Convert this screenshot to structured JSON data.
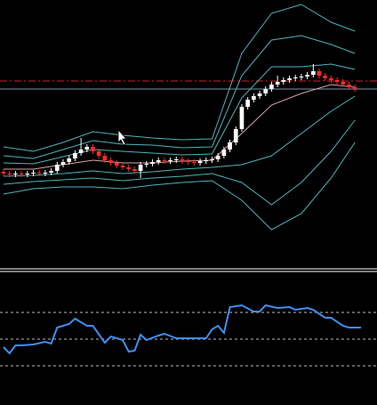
{
  "chart_data": [
    {
      "type": "candlestick",
      "xlim": [
        -0.6,
        62.7
      ],
      "ylim": [
        0,
        300
      ],
      "open": [
        107,
        105,
        104,
        105,
        104,
        105,
        106,
        105,
        106,
        108,
        115,
        118,
        122,
        128,
        132,
        135,
        130,
        125,
        120,
        117,
        114,
        112,
        110,
        108,
        115,
        116,
        118,
        120,
        119,
        120,
        121,
        119,
        118,
        117,
        119,
        120,
        121,
        125,
        132,
        140,
        155,
        180,
        188,
        192,
        195,
        200,
        205,
        208,
        210,
        212,
        213,
        214,
        216,
        220,
        215,
        212,
        210,
        208,
        205,
        202
      ],
      "high": [
        110,
        108,
        108,
        108,
        108,
        109,
        109,
        109,
        111,
        118,
        121,
        125,
        131,
        145,
        138,
        138,
        133,
        128,
        123,
        120,
        117,
        115,
        113,
        118,
        119,
        121,
        123,
        123,
        123,
        124,
        124,
        122,
        121,
        122,
        123,
        124,
        128,
        135,
        143,
        158,
        183,
        191,
        195,
        198,
        203,
        208,
        215,
        213,
        215,
        216,
        217,
        219,
        228,
        223,
        218,
        215,
        213,
        211,
        208,
        205
      ],
      "low": [
        102,
        101,
        101,
        101,
        101,
        102,
        102,
        102,
        103,
        105,
        112,
        115,
        119,
        125,
        129,
        127,
        122,
        117,
        114,
        111,
        109,
        107,
        105,
        100,
        112,
        113,
        115,
        116,
        116,
        117,
        116,
        115,
        114,
        114,
        116,
        117,
        118,
        122,
        129,
        137,
        152,
        177,
        185,
        189,
        192,
        197,
        202,
        205,
        207,
        209,
        210,
        211,
        213,
        212,
        209,
        207,
        205,
        203,
        200,
        197
      ],
      "close": [
        105,
        104,
        105,
        104,
        105,
        106,
        105,
        106,
        108,
        115,
        118,
        122,
        128,
        132,
        135,
        130,
        125,
        120,
        117,
        114,
        112,
        110,
        108,
        115,
        116,
        118,
        120,
        119,
        120,
        121,
        119,
        118,
        117,
        119,
        120,
        121,
        125,
        132,
        140,
        155,
        180,
        188,
        192,
        195,
        200,
        205,
        208,
        210,
        212,
        213,
        214,
        216,
        220,
        215,
        212,
        210,
        208,
        205,
        202,
        200
      ],
      "up_color": "#ffffff",
      "down_color": "#ff2a2a",
      "bands": {
        "x": [
          0,
          5,
          10,
          15,
          20,
          25,
          30,
          35,
          40,
          45,
          50,
          55,
          59
        ],
        "series": [
          {
            "color": "#d9a3a3",
            "values": [
              110,
              110,
              115,
              120,
              117,
              117,
              119,
              120,
              150,
              182,
              195,
              205,
              202
            ]
          },
          {
            "color": "#4fb3b8",
            "values": [
              117,
              116,
              124,
              132,
              130,
              128,
              126,
              127,
              190,
              225,
              225,
              228,
              222
            ]
          },
          {
            "color": "#4fb3b8",
            "values": [
              125,
              122,
              132,
              142,
              138,
              137,
              134,
              135,
              215,
              255,
              260,
              250,
              240
            ]
          },
          {
            "color": "#4fb3b8",
            "values": [
              135,
              130,
              140,
              152,
              148,
              145,
              143,
              144,
              240,
              285,
              295,
              275,
              265
            ]
          },
          {
            "color": "#4fb3b8",
            "values": [
              102,
              103,
              105,
              108,
              105,
              107,
              110,
              112,
              115,
              125,
              150,
              175,
              192
            ]
          },
          {
            "color": "#4fb3b8",
            "values": [
              93,
              96,
              98,
              100,
              97,
              100,
              102,
              105,
              95,
              70,
              95,
              130,
              165
            ]
          },
          {
            "color": "#4fb3b8",
            "values": [
              82,
              88,
              90,
              90,
              88,
              92,
              95,
              97,
              75,
              42,
              60,
              100,
              140
            ]
          }
        ]
      },
      "hlines": [
        {
          "value": 209,
          "color": "#d42020",
          "style": "dashdot"
        },
        {
          "value": 200,
          "color": "#7f93a8",
          "style": "solid"
        }
      ]
    },
    {
      "type": "line",
      "xlim": [
        -0.6,
        62.7
      ],
      "ylim": [
        0,
        147
      ],
      "x": [
        0,
        1,
        2,
        3,
        5,
        7,
        8,
        9,
        11,
        12,
        14,
        15,
        17,
        18,
        20,
        21,
        22,
        23,
        24,
        26,
        27,
        29,
        34,
        35,
        36,
        37,
        38,
        40,
        42,
        43,
        44,
        46,
        48,
        49,
        51,
        52,
        54,
        55,
        57,
        58,
        60
      ],
      "values": [
        65,
        58,
        67,
        67,
        68,
        71,
        69,
        87,
        91,
        97,
        89,
        89,
        70,
        77,
        73,
        60,
        61,
        79,
        73,
        78,
        80,
        75,
        75,
        85,
        89,
        81,
        110,
        112,
        105,
        105,
        112,
        109,
        110,
        107,
        109,
        107,
        98,
        98,
        89,
        87,
        87
      ],
      "color": "#3d8ff5",
      "levels": [
        104,
        74,
        44
      ],
      "level_color": "#bbbbbb"
    }
  ]
}
